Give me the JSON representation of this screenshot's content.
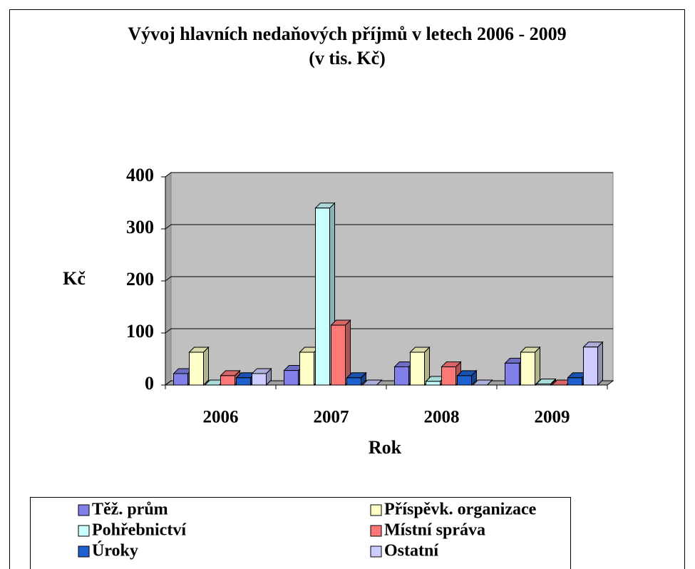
{
  "chart_data": {
    "type": "bar3d",
    "title": "Vývoj hlavních nedaňových příjmů v letech 2006 - 2009",
    "subtitle": "(v tis. Kč)",
    "y_label": "Kč",
    "x_label": "Rok",
    "categories": [
      "2006",
      "2007",
      "2008",
      "2009"
    ],
    "series": [
      {
        "name": "Těž. prům",
        "color": "#8080e8",
        "values": [
          22,
          28,
          35,
          42
        ]
      },
      {
        "name": "Příspěvk. organizace",
        "color": "#ffffc8",
        "values": [
          63,
          63,
          63,
          63
        ]
      },
      {
        "name": "Pohřebnictví",
        "color": "#c8ffff",
        "values": [
          0,
          340,
          7,
          2
        ]
      },
      {
        "name": "Místní správa",
        "color": "#ff7878",
        "values": [
          18,
          115,
          35,
          0
        ]
      },
      {
        "name": "Úroky",
        "color": "#1f60d0",
        "values": [
          14,
          14,
          18,
          14
        ]
      },
      {
        "name": "Ostatní",
        "color": "#ccccff",
        "values": [
          22,
          0,
          0,
          73
        ]
      }
    ],
    "ylim": [
      0,
      400
    ],
    "yticks": [
      0,
      100,
      200,
      300,
      400
    ],
    "grid": true
  }
}
